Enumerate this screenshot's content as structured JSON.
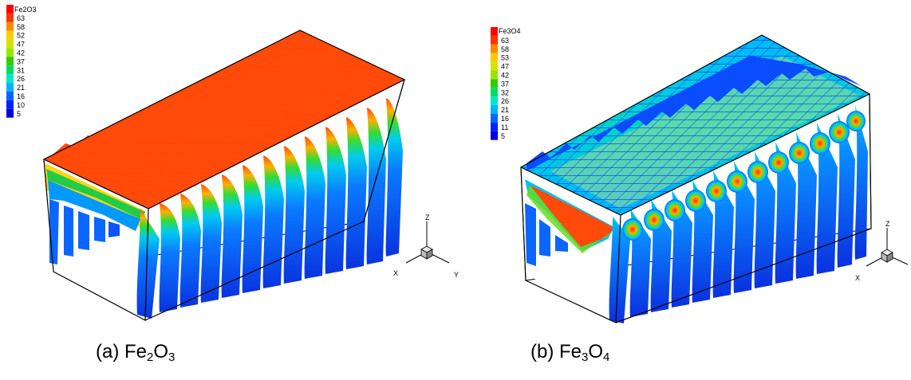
{
  "panels": [
    {
      "legend_title": "Fe2O3",
      "legend_levels": [
        "63",
        "58",
        "52",
        "47",
        "42",
        "37",
        "31",
        "26",
        "21",
        "16",
        "10",
        "5"
      ],
      "caption": {
        "prefix": "(a) Fe",
        "sub1": "2",
        "mid": "O",
        "sub2": "3"
      },
      "axis_labels": {
        "z": "Z",
        "x": "X",
        "y": "Y"
      }
    },
    {
      "legend_title": "Fe3O4",
      "legend_levels": [
        "63",
        "58",
        "53",
        "47",
        "42",
        "37",
        "32",
        "26",
        "21",
        "16",
        "11",
        "5"
      ],
      "caption": {
        "prefix": "(b) Fe",
        "sub1": "3",
        "mid": "O",
        "sub2": "4"
      },
      "axis_labels": {
        "z": "Z",
        "x": "X"
      }
    }
  ],
  "legend_colors": [
    "#ff0000",
    "#ff3300",
    "#ff8800",
    "#ffcc00",
    "#d4e600",
    "#99e600",
    "#33cc00",
    "#00dd66",
    "#00e6c8",
    "#00b3ff",
    "#0066ff",
    "#0022ff",
    "#0000dd"
  ],
  "colors": {
    "hot": "#ff4a0a",
    "warm": "#ffaa00",
    "mid": "#33dd33",
    "cool": "#00ccee",
    "cold": "#0a4cff",
    "deep": "#0a22d0"
  }
}
